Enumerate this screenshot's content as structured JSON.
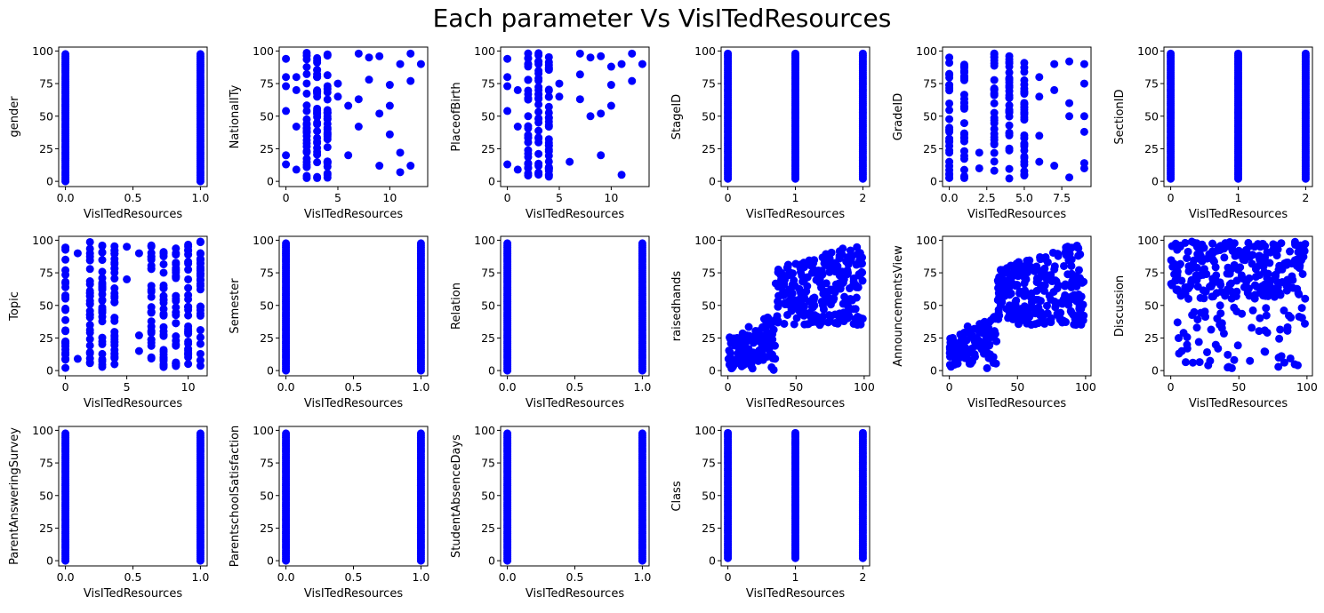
{
  "title": "Each parameter Vs VisITedResources",
  "colors": {
    "marker": "#0000ff",
    "axis": "#000000",
    "background": "#ffffff"
  },
  "chart_data": [
    {
      "type": "scatter",
      "xlabel": "VisITedResources",
      "ylabel": "gender",
      "xlim": [
        -0.05,
        1.05
      ],
      "ylim": [
        -4,
        103
      ],
      "xticks": [
        0.0,
        0.5,
        1.0
      ],
      "xticklabels": [
        "0.0",
        "0.5",
        "1.0"
      ],
      "yticks": [
        0,
        25,
        50,
        75,
        100
      ],
      "yticklabels": [
        "0",
        "25",
        "50",
        "75",
        "100"
      ],
      "xs_repr": [
        0,
        1
      ],
      "y_range": [
        0,
        99
      ]
    },
    {
      "type": "scatter",
      "xlabel": "VisITedResources",
      "ylabel": "NationalITy",
      "xlim": [
        -0.65,
        13.65
      ],
      "ylim": [
        -4,
        103
      ],
      "xticks": [
        0,
        5,
        10
      ],
      "xticklabels": [
        "0",
        "5",
        "10"
      ],
      "yticks": [
        0,
        25,
        50,
        75,
        100
      ],
      "yticklabels": [
        "0",
        "25",
        "50",
        "75",
        "100"
      ],
      "dense": [
        2,
        3,
        4
      ],
      "sparse": [
        [
          0,
          94
        ],
        [
          0,
          80
        ],
        [
          0,
          73
        ],
        [
          0,
          54
        ],
        [
          0,
          20
        ],
        [
          0,
          13
        ],
        [
          1,
          42
        ],
        [
          1,
          70
        ],
        [
          1,
          80
        ],
        [
          1,
          9
        ],
        [
          5,
          75
        ],
        [
          5,
          65
        ],
        [
          6,
          58
        ],
        [
          6,
          20
        ],
        [
          7,
          98
        ],
        [
          7,
          63
        ],
        [
          7,
          42
        ],
        [
          8,
          95
        ],
        [
          8,
          78
        ],
        [
          9,
          96
        ],
        [
          9,
          52
        ],
        [
          9,
          12
        ],
        [
          10,
          58
        ],
        [
          10,
          74
        ],
        [
          10,
          36
        ],
        [
          11,
          90
        ],
        [
          11,
          22
        ],
        [
          11,
          7
        ],
        [
          12,
          98
        ],
        [
          12,
          77
        ],
        [
          12,
          12
        ],
        [
          13,
          90
        ]
      ]
    },
    {
      "type": "scatter",
      "xlabel": "VisITedResources",
      "ylabel": "PlaceofBirth",
      "xlim": [
        -0.65,
        13.65
      ],
      "ylim": [
        -4,
        103
      ],
      "xticks": [
        0,
        5,
        10
      ],
      "xticklabels": [
        "0",
        "5",
        "10"
      ],
      "yticks": [
        0,
        25,
        50,
        75,
        100
      ],
      "yticklabels": [
        "0",
        "25",
        "50",
        "75",
        "100"
      ],
      "dense": [
        2,
        3,
        4
      ],
      "sparse": [
        [
          0,
          94
        ],
        [
          0,
          80
        ],
        [
          0,
          73
        ],
        [
          0,
          54
        ],
        [
          0,
          13
        ],
        [
          1,
          42
        ],
        [
          1,
          70
        ],
        [
          1,
          9
        ],
        [
          5,
          75
        ],
        [
          5,
          65
        ],
        [
          6,
          15
        ],
        [
          7,
          98
        ],
        [
          7,
          63
        ],
        [
          7,
          82
        ],
        [
          8,
          95
        ],
        [
          8,
          50
        ],
        [
          9,
          96
        ],
        [
          9,
          52
        ],
        [
          9,
          20
        ],
        [
          10,
          58
        ],
        [
          10,
          74
        ],
        [
          10,
          88
        ],
        [
          11,
          90
        ],
        [
          11,
          5
        ],
        [
          12,
          98
        ],
        [
          12,
          77
        ],
        [
          13,
          90
        ]
      ]
    },
    {
      "type": "scatter",
      "xlabel": "VisITedResources",
      "ylabel": "StageID",
      "xlim": [
        -0.1,
        2.1
      ],
      "ylim": [
        -4,
        103
      ],
      "xticks": [
        0,
        1,
        2
      ],
      "xticklabels": [
        "0",
        "1",
        "2"
      ],
      "yticks": [
        0,
        25,
        50,
        75,
        100
      ],
      "yticklabels": [
        "0",
        "25",
        "50",
        "75",
        "100"
      ],
      "xs_repr": [
        0,
        1,
        2
      ],
      "y_range": [
        2,
        99
      ]
    },
    {
      "type": "scatter",
      "xlabel": "VisITedResources",
      "ylabel": "GradeID",
      "xlim": [
        -0.45,
        9.45
      ],
      "ylim": [
        -4,
        103
      ],
      "xticks": [
        0,
        2.5,
        5,
        7.5
      ],
      "xticklabels": [
        "0.0",
        "2.5",
        "5.0",
        "7.5"
      ],
      "yticks": [
        0,
        25,
        50,
        75,
        100
      ],
      "yticklabels": [
        "0",
        "25",
        "50",
        "75",
        "100"
      ],
      "dense": [
        0,
        1,
        3,
        4,
        5
      ],
      "sparse": [
        [
          2,
          22
        ],
        [
          2,
          10
        ],
        [
          6,
          80
        ],
        [
          6,
          65
        ],
        [
          6,
          35
        ],
        [
          6,
          15
        ],
        [
          7,
          90
        ],
        [
          7,
          70
        ],
        [
          7,
          12
        ],
        [
          8,
          92
        ],
        [
          8,
          60
        ],
        [
          8,
          50
        ],
        [
          8,
          3
        ],
        [
          9,
          90
        ],
        [
          9,
          75
        ],
        [
          9,
          50
        ],
        [
          9,
          38
        ],
        [
          9,
          14
        ],
        [
          9,
          10
        ]
      ]
    },
    {
      "type": "scatter",
      "xlabel": "VisITedResources",
      "ylabel": "SectionID",
      "xlim": [
        -0.1,
        2.1
      ],
      "ylim": [
        -4,
        103
      ],
      "xticks": [
        0,
        1,
        2
      ],
      "xticklabels": [
        "0",
        "1",
        "2"
      ],
      "yticks": [
        0,
        25,
        50,
        75,
        100
      ],
      "yticklabels": [
        "0",
        "25",
        "50",
        "75",
        "100"
      ],
      "xs_repr": [
        0,
        1,
        2
      ],
      "y_range": [
        2,
        99
      ]
    },
    {
      "type": "scatter",
      "xlabel": "VisITedResources",
      "ylabel": "Topic",
      "xlim": [
        -0.55,
        11.55
      ],
      "ylim": [
        -4,
        103
      ],
      "xticks": [
        0,
        5,
        10
      ],
      "xticklabels": [
        "0",
        "5",
        "10"
      ],
      "yticks": [
        0,
        25,
        50,
        75,
        100
      ],
      "yticklabels": [
        "0",
        "25",
        "50",
        "75",
        "100"
      ],
      "dense": [
        0,
        2,
        3,
        4,
        7,
        8,
        9,
        10,
        11
      ],
      "sparse": [
        [
          1,
          9
        ],
        [
          1,
          90
        ],
        [
          5,
          95
        ],
        [
          5,
          70
        ],
        [
          6,
          90
        ],
        [
          6,
          27
        ],
        [
          6,
          15
        ]
      ]
    },
    {
      "type": "scatter",
      "xlabel": "VisITedResources",
      "ylabel": "Semester",
      "xlim": [
        -0.05,
        1.05
      ],
      "ylim": [
        -4,
        103
      ],
      "xticks": [
        0.0,
        0.5,
        1.0
      ],
      "xticklabels": [
        "0.0",
        "0.5",
        "1.0"
      ],
      "yticks": [
        0,
        25,
        50,
        75,
        100
      ],
      "yticklabels": [
        "0",
        "25",
        "50",
        "75",
        "100"
      ],
      "xs_repr": [
        0,
        1
      ],
      "y_range": [
        0,
        99
      ]
    },
    {
      "type": "scatter",
      "xlabel": "VisITedResources",
      "ylabel": "Relation",
      "xlim": [
        -0.05,
        1.05
      ],
      "ylim": [
        -4,
        103
      ],
      "xticks": [
        0.0,
        0.5,
        1.0
      ],
      "xticklabels": [
        "0.0",
        "0.5",
        "1.0"
      ],
      "yticks": [
        0,
        25,
        50,
        75,
        100
      ],
      "yticklabels": [
        "0",
        "25",
        "50",
        "75",
        "100"
      ],
      "xs_repr": [
        0,
        1
      ],
      "y_range": [
        0,
        99
      ]
    },
    {
      "type": "scatter",
      "xlabel": "VisITedResources",
      "ylabel": "raisedhands",
      "xlim": [
        -5,
        104
      ],
      "ylim": [
        -4,
        103
      ],
      "xticks": [
        0,
        50,
        100
      ],
      "xticklabels": [
        "0",
        "50",
        "100"
      ],
      "yticks": [
        0,
        25,
        50,
        75,
        100
      ],
      "yticklabels": [
        "0",
        "25",
        "50",
        "75",
        "100"
      ],
      "correlated": true
    },
    {
      "type": "scatter",
      "xlabel": "VisITedResources",
      "ylabel": "AnnouncementsView",
      "xlim": [
        -5,
        104
      ],
      "ylim": [
        -4,
        103
      ],
      "xticks": [
        0,
        50,
        100
      ],
      "xticklabels": [
        "0",
        "50",
        "100"
      ],
      "yticks": [
        0,
        25,
        50,
        75,
        100
      ],
      "yticklabels": [
        "0",
        "25",
        "50",
        "75",
        "100"
      ],
      "correlated": true
    },
    {
      "type": "scatter",
      "xlabel": "VisITedResources",
      "ylabel": "Discussion",
      "xlim": [
        -5,
        104
      ],
      "ylim": [
        -4,
        103
      ],
      "xticks": [
        0,
        50,
        100
      ],
      "xticklabels": [
        "0",
        "50",
        "100"
      ],
      "yticks": [
        0,
        25,
        50,
        75,
        100
      ],
      "yticklabels": [
        "0",
        "25",
        "50",
        "75",
        "100"
      ],
      "spread": true
    },
    {
      "type": "scatter",
      "xlabel": "VisITedResources",
      "ylabel": "ParentAnsweringSurvey",
      "xlim": [
        -0.05,
        1.05
      ],
      "ylim": [
        -4,
        103
      ],
      "xticks": [
        0.0,
        0.5,
        1.0
      ],
      "xticklabels": [
        "0.0",
        "0.5",
        "1.0"
      ],
      "yticks": [
        0,
        25,
        50,
        75,
        100
      ],
      "yticklabels": [
        "0",
        "25",
        "50",
        "75",
        "100"
      ],
      "xs_repr": [
        0,
        1
      ],
      "y_range": [
        0,
        99
      ]
    },
    {
      "type": "scatter",
      "xlabel": "VisITedResources",
      "ylabel": "ParentschoolSatisfaction",
      "xlim": [
        -0.05,
        1.05
      ],
      "ylim": [
        -4,
        103
      ],
      "xticks": [
        0.0,
        0.5,
        1.0
      ],
      "xticklabels": [
        "0.0",
        "0.5",
        "1.0"
      ],
      "yticks": [
        0,
        25,
        50,
        75,
        100
      ],
      "yticklabels": [
        "0",
        "25",
        "50",
        "75",
        "100"
      ],
      "xs_repr": [
        0,
        1
      ],
      "y_range": [
        0,
        99
      ]
    },
    {
      "type": "scatter",
      "xlabel": "VisITedResources",
      "ylabel": "StudentAbsenceDays",
      "xlim": [
        -0.05,
        1.05
      ],
      "ylim": [
        -4,
        103
      ],
      "xticks": [
        0.0,
        0.5,
        1.0
      ],
      "xticklabels": [
        "0.0",
        "0.5",
        "1.0"
      ],
      "yticks": [
        0,
        25,
        50,
        75,
        100
      ],
      "yticklabels": [
        "0",
        "25",
        "50",
        "75",
        "100"
      ],
      "xs_repr": [
        0,
        1
      ],
      "y_range": [
        0,
        99
      ]
    },
    {
      "type": "scatter",
      "xlabel": "VisITedResources",
      "ylabel": "Class",
      "xlim": [
        -0.1,
        2.1
      ],
      "ylim": [
        -4,
        103
      ],
      "xticks": [
        0,
        1,
        2
      ],
      "xticklabels": [
        "0",
        "1",
        "2"
      ],
      "yticks": [
        0,
        25,
        50,
        75,
        100
      ],
      "yticklabels": [
        "0",
        "25",
        "50",
        "75",
        "100"
      ],
      "xs_repr": [
        0,
        1,
        2
      ],
      "y_range": [
        2,
        99
      ],
      "sparse": [
        [
          1,
          90
        ]
      ]
    }
  ]
}
